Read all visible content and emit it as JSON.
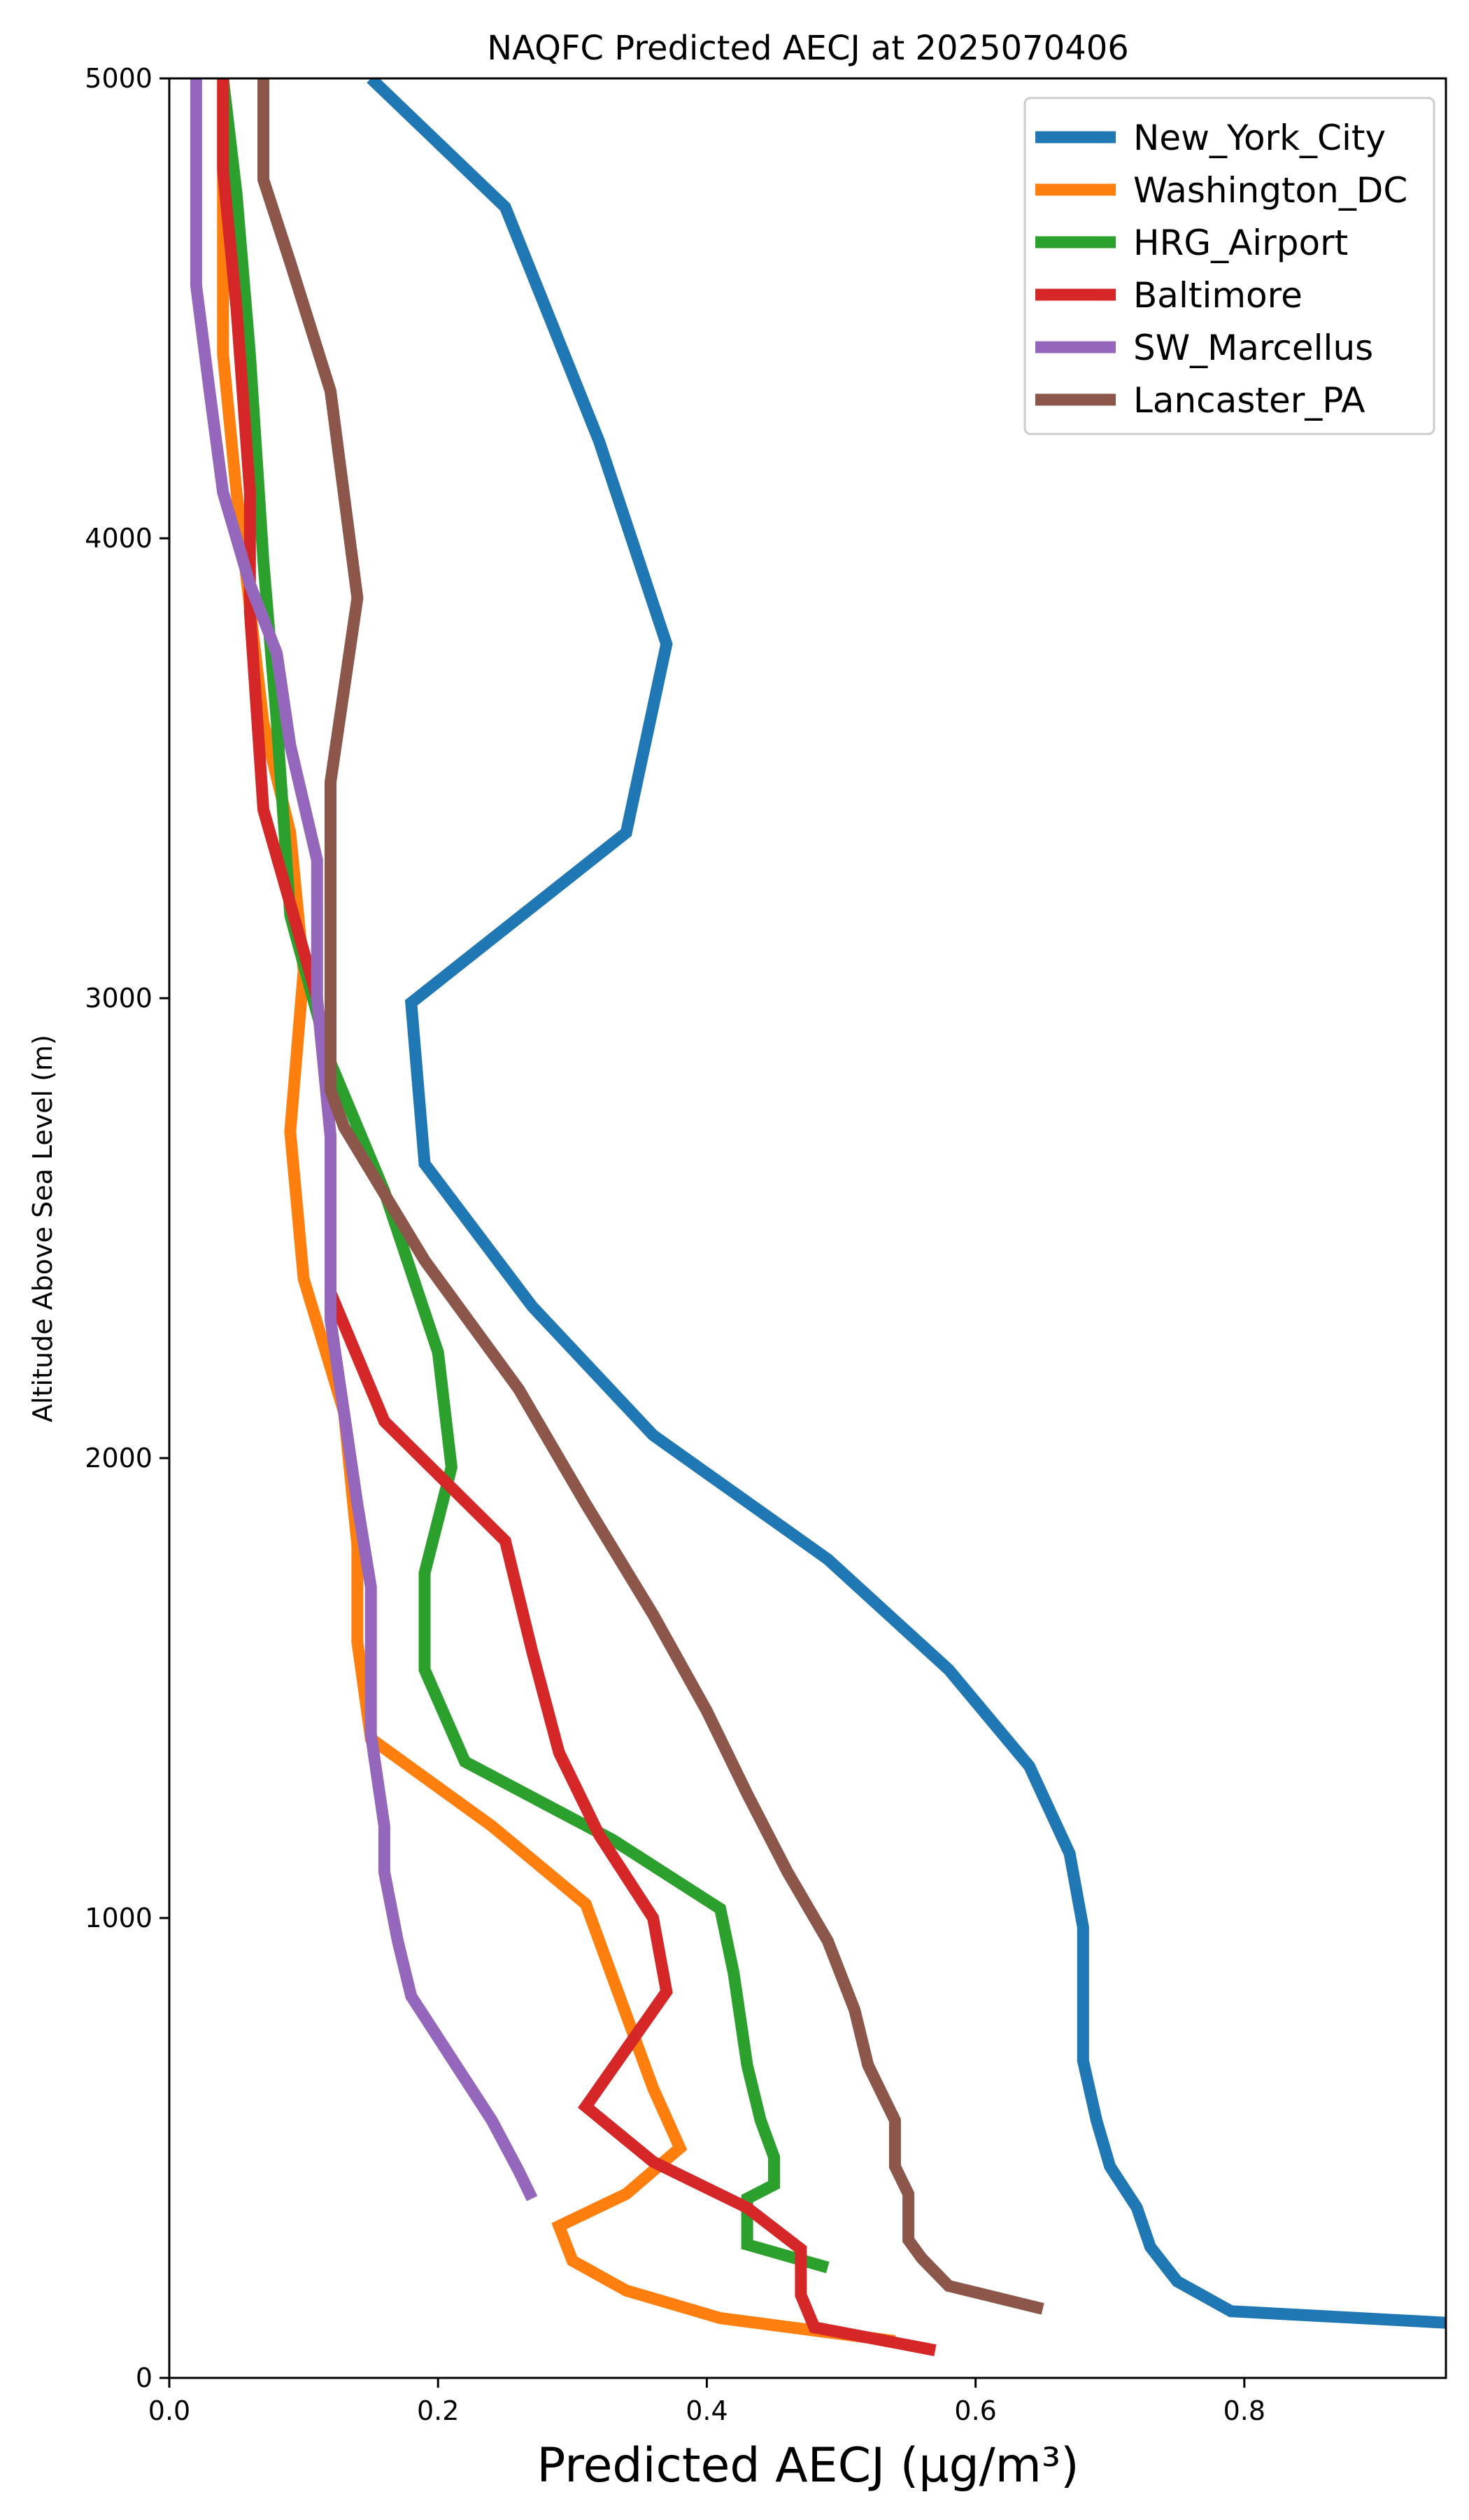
{
  "chart_data": {
    "type": "line",
    "title": "NAQFC Predicted AECJ at 2025070406",
    "xlabel": "Predicted AECJ (μg/m³)",
    "ylabel": "Altitude Above Sea Level (m)",
    "xlim": [
      0.0,
      0.95
    ],
    "ylim": [
      0,
      5000
    ],
    "x_ticks": [
      "0.0",
      "0.2",
      "0.4",
      "0.6",
      "0.8"
    ],
    "y_ticks": [
      "0",
      "1000",
      "2000",
      "3000",
      "4000",
      "5000"
    ],
    "x_tick_values": [
      0.0,
      0.2,
      0.4,
      0.6,
      0.8
    ],
    "y_tick_values": [
      0,
      1000,
      2000,
      3000,
      4000,
      5000
    ],
    "grid": false,
    "legend_position": "top-right",
    "series": [
      {
        "name": "New_York_City",
        "color": "#1f77b4",
        "points": [
          [
            0.95,
            120
          ],
          [
            0.79,
            145
          ],
          [
            0.75,
            210
          ],
          [
            0.73,
            285
          ],
          [
            0.72,
            370
          ],
          [
            0.7,
            460
          ],
          [
            0.69,
            560
          ],
          [
            0.68,
            690
          ],
          [
            0.68,
            980
          ],
          [
            0.67,
            1140
          ],
          [
            0.64,
            1330
          ],
          [
            0.58,
            1540
          ],
          [
            0.49,
            1780
          ],
          [
            0.36,
            2050
          ],
          [
            0.27,
            2330
          ],
          [
            0.19,
            2640
          ],
          [
            0.18,
            2990
          ],
          [
            0.34,
            3360
          ],
          [
            0.37,
            3770
          ],
          [
            0.32,
            4210
          ],
          [
            0.25,
            4720
          ],
          [
            0.15,
            5000
          ]
        ]
      },
      {
        "name": "Washington_DC",
        "color": "#ff7f0e",
        "points": [
          [
            0.54,
            80
          ],
          [
            0.41,
            130
          ],
          [
            0.34,
            190
          ],
          [
            0.3,
            255
          ],
          [
            0.29,
            330
          ],
          [
            0.34,
            400
          ],
          [
            0.38,
            500
          ],
          [
            0.36,
            630
          ],
          [
            0.33,
            870
          ],
          [
            0.31,
            1030
          ],
          [
            0.24,
            1200
          ],
          [
            0.15,
            1390
          ],
          [
            0.14,
            1600
          ],
          [
            0.14,
            1810
          ],
          [
            0.13,
            2100
          ],
          [
            0.1,
            2390
          ],
          [
            0.09,
            2710
          ],
          [
            0.1,
            3060
          ],
          [
            0.09,
            3360
          ],
          [
            0.07,
            3600
          ],
          [
            0.06,
            3850
          ],
          [
            0.05,
            4100
          ],
          [
            0.04,
            4400
          ],
          [
            0.04,
            4700
          ],
          [
            0.04,
            5000
          ]
        ]
      },
      {
        "name": "HRG_Airport",
        "color": "#2ca02c",
        "points": [
          [
            0.49,
            240
          ],
          [
            0.43,
            290
          ],
          [
            0.43,
            390
          ],
          [
            0.45,
            420
          ],
          [
            0.45,
            480
          ],
          [
            0.44,
            560
          ],
          [
            0.43,
            680
          ],
          [
            0.42,
            880
          ],
          [
            0.41,
            1020
          ],
          [
            0.33,
            1170
          ],
          [
            0.22,
            1340
          ],
          [
            0.19,
            1540
          ],
          [
            0.19,
            1750
          ],
          [
            0.21,
            1980
          ],
          [
            0.2,
            2230
          ],
          [
            0.16,
            2580
          ],
          [
            0.12,
            2860
          ],
          [
            0.09,
            3180
          ],
          [
            0.08,
            3600
          ],
          [
            0.07,
            3950
          ],
          [
            0.06,
            4400
          ],
          [
            0.05,
            4750
          ],
          [
            0.04,
            5000
          ]
        ]
      },
      {
        "name": "Baltimore",
        "color": "#d62728",
        "points": [
          [
            0.57,
            60
          ],
          [
            0.48,
            110
          ],
          [
            0.47,
            180
          ],
          [
            0.47,
            240
          ],
          [
            0.47,
            280
          ],
          [
            0.43,
            370
          ],
          [
            0.36,
            470
          ],
          [
            0.31,
            590
          ],
          [
            0.37,
            840
          ],
          [
            0.36,
            1000
          ],
          [
            0.32,
            1180
          ],
          [
            0.29,
            1360
          ],
          [
            0.27,
            1580
          ],
          [
            0.25,
            1820
          ],
          [
            0.16,
            2080
          ],
          [
            0.12,
            2360
          ],
          [
            0.12,
            2700
          ],
          [
            0.11,
            3000
          ],
          [
            0.07,
            3410
          ],
          [
            0.06,
            3840
          ],
          [
            0.06,
            4100
          ],
          [
            0.05,
            4500
          ],
          [
            0.04,
            4800
          ],
          [
            0.04,
            5000
          ]
        ]
      },
      {
        "name": "SW_Marcellus",
        "color": "#9467bd",
        "points": [
          [
            0.27,
            390
          ],
          [
            0.26,
            450
          ],
          [
            0.24,
            560
          ],
          [
            0.22,
            650
          ],
          [
            0.2,
            740
          ],
          [
            0.18,
            830
          ],
          [
            0.17,
            950
          ],
          [
            0.16,
            1100
          ],
          [
            0.16,
            1200
          ],
          [
            0.15,
            1400
          ],
          [
            0.15,
            1550
          ],
          [
            0.15,
            1720
          ],
          [
            0.14,
            1900
          ],
          [
            0.13,
            2100
          ],
          [
            0.12,
            2300
          ],
          [
            0.12,
            2500
          ],
          [
            0.12,
            2700
          ],
          [
            0.11,
            3000
          ],
          [
            0.11,
            3300
          ],
          [
            0.09,
            3550
          ],
          [
            0.08,
            3750
          ],
          [
            0.06,
            3900
          ],
          [
            0.04,
            4100
          ],
          [
            0.03,
            4320
          ],
          [
            0.02,
            4550
          ],
          [
            0.02,
            4800
          ],
          [
            0.02,
            5000
          ]
        ]
      },
      {
        "name": "Lancaster_PA",
        "color": "#8c564b",
        "points": [
          [
            0.65,
            150
          ],
          [
            0.58,
            200
          ],
          [
            0.56,
            260
          ],
          [
            0.55,
            300
          ],
          [
            0.55,
            400
          ],
          [
            0.54,
            460
          ],
          [
            0.54,
            560
          ],
          [
            0.52,
            680
          ],
          [
            0.51,
            800
          ],
          [
            0.49,
            950
          ],
          [
            0.46,
            1100
          ],
          [
            0.43,
            1270
          ],
          [
            0.4,
            1450
          ],
          [
            0.36,
            1660
          ],
          [
            0.31,
            1900
          ],
          [
            0.26,
            2150
          ],
          [
            0.19,
            2430
          ],
          [
            0.13,
            2720
          ],
          [
            0.12,
            2800
          ],
          [
            0.12,
            3100
          ],
          [
            0.12,
            3470
          ],
          [
            0.14,
            3870
          ],
          [
            0.12,
            4320
          ],
          [
            0.09,
            4600
          ],
          [
            0.07,
            4780
          ],
          [
            0.07,
            5000
          ]
        ]
      }
    ]
  }
}
